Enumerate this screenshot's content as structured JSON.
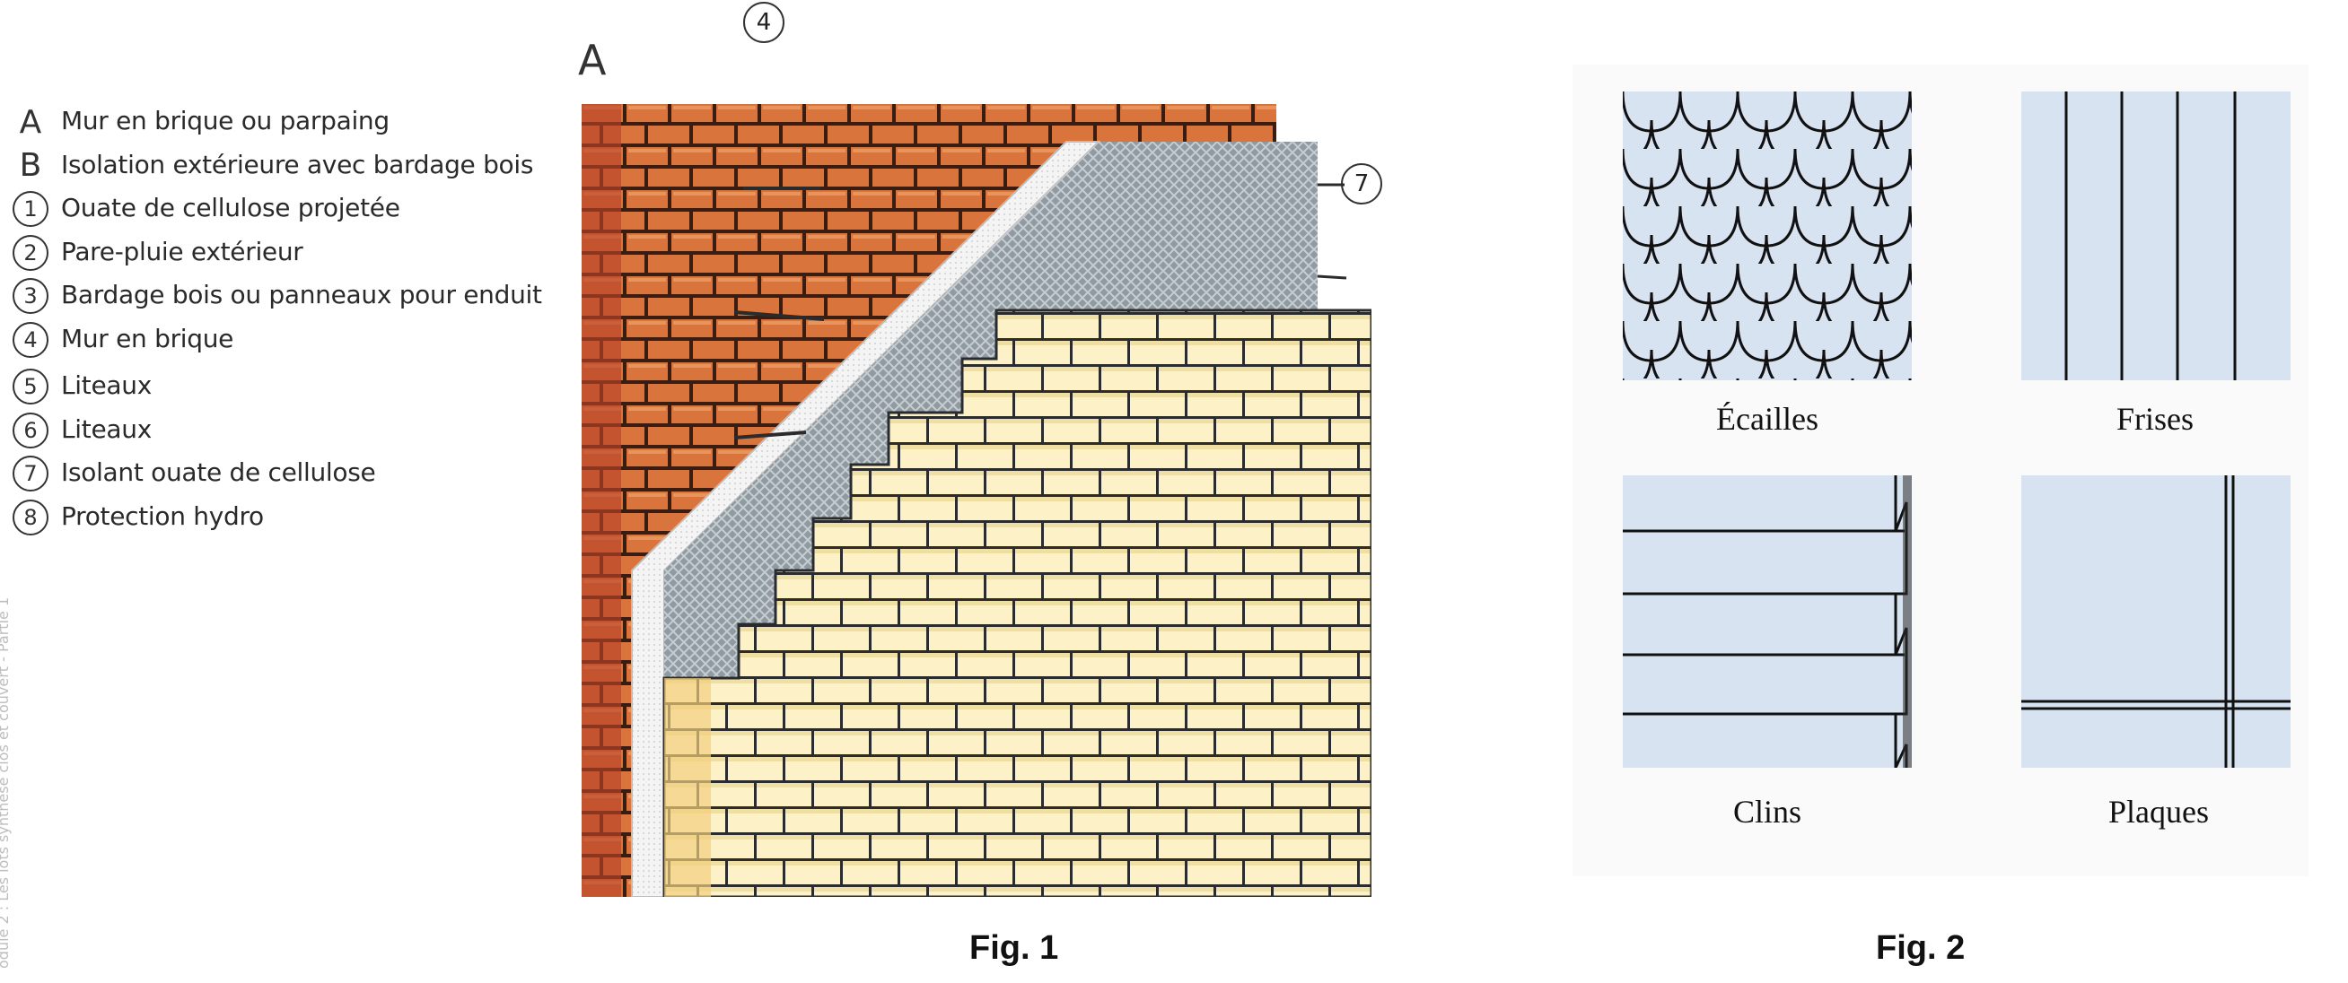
{
  "legend": {
    "items": [
      {
        "marker": "A",
        "label": "Mur en brique ou parpaing"
      },
      {
        "marker": "B",
        "label": "Isolation extérieure avec bardage bois"
      },
      {
        "marker": "1",
        "label": "Ouate de cellulose projetée"
      },
      {
        "marker": "2",
        "label": "Pare-pluie extérieur"
      },
      {
        "marker": "3",
        "label": "Bardage bois ou panneaux pour enduit"
      },
      {
        "marker": "4",
        "label": "Mur en brique"
      },
      {
        "marker": "5",
        "label": "Liteaux"
      },
      {
        "marker": "6",
        "label": "Liteaux"
      },
      {
        "marker": "7",
        "label": "Isolant ouate de cellulose"
      },
      {
        "marker": "8",
        "label": "Protection hydro"
      }
    ]
  },
  "fig1": {
    "label_a": "A",
    "callout_top": "4",
    "callout_right": "7",
    "caption": "Fig. 1",
    "colors": {
      "brick_red": "#d9743c",
      "brick_cream": "#fdf1c8",
      "insulation": "#8f9aa1",
      "membrane": "#f2f2f2"
    }
  },
  "fig2": {
    "caption": "Fig. 2",
    "swatches": [
      {
        "name": "scales-swatch",
        "label": "Écailles"
      },
      {
        "name": "frises-swatch",
        "label": "Frises"
      },
      {
        "name": "clins-swatch",
        "label": "Clins"
      },
      {
        "name": "plaques-swatch",
        "label": "Plaques"
      }
    ],
    "colors": {
      "panel_blue": "#d8e3f2"
    }
  },
  "side_note": "odule 2 : Les lots synthèse clos et couvert - Partie 1"
}
